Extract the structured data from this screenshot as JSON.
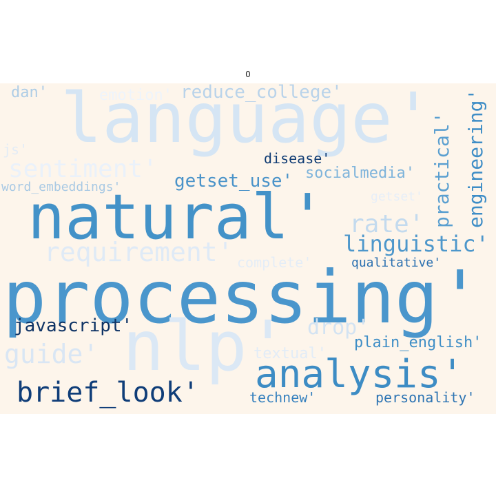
{
  "title": "0",
  "background": "#fdf5eb",
  "words": [
    {
      "text": "language'",
      "color": "#d5e5f4"
    },
    {
      "text": "natural'",
      "color": "#4392c8"
    },
    {
      "text": "processing'",
      "color": "#4a96cc"
    },
    {
      "text": "nlp'",
      "color": "#dbe8f5"
    },
    {
      "text": "analysis'",
      "color": "#3d8cc4"
    },
    {
      "text": "brief_look'",
      "color": "#0f3d78"
    },
    {
      "text": "sentiment'",
      "color": "#eaf1fa"
    },
    {
      "text": "requirement'",
      "color": "#dfeaf6"
    },
    {
      "text": "guide'",
      "color": "#d9e6f4"
    },
    {
      "text": "reduce_college'",
      "color": "#b9d3ea"
    },
    {
      "text": "emotion'",
      "color": "#eef4fb"
    },
    {
      "text": "dan'",
      "color": "#aecde6"
    },
    {
      "text": "js'",
      "color": "#e3ecf6"
    },
    {
      "text": "word_embeddings'",
      "color": "#a8c9e4"
    },
    {
      "text": "getset_use'",
      "color": "#4a93c9"
    },
    {
      "text": "disease'",
      "color": "#0f3b73"
    },
    {
      "text": "socialmedia'",
      "color": "#7fb4db"
    },
    {
      "text": "rate'",
      "color": "#c3daee"
    },
    {
      "text": "linguistic'",
      "color": "#4d97cb"
    },
    {
      "text": "getset'",
      "color": "#e6eef8"
    },
    {
      "text": "complete'",
      "color": "#e4edf7"
    },
    {
      "text": "qualitative'",
      "color": "#2b70b0"
    },
    {
      "text": "javascript'",
      "color": "#0e3365"
    },
    {
      "text": "drop'",
      "color": "#d3e3f2"
    },
    {
      "text": "plain_english'",
      "color": "#3f8ec6"
    },
    {
      "text": "textual'",
      "color": "#e2ecf7"
    },
    {
      "text": "technew'",
      "color": "#3580be"
    },
    {
      "text": "personality'",
      "color": "#2d74b3"
    },
    {
      "text": "practical'",
      "color": "#5a9fd0"
    },
    {
      "text": "engineering'",
      "color": "#3e8dc6"
    }
  ]
}
